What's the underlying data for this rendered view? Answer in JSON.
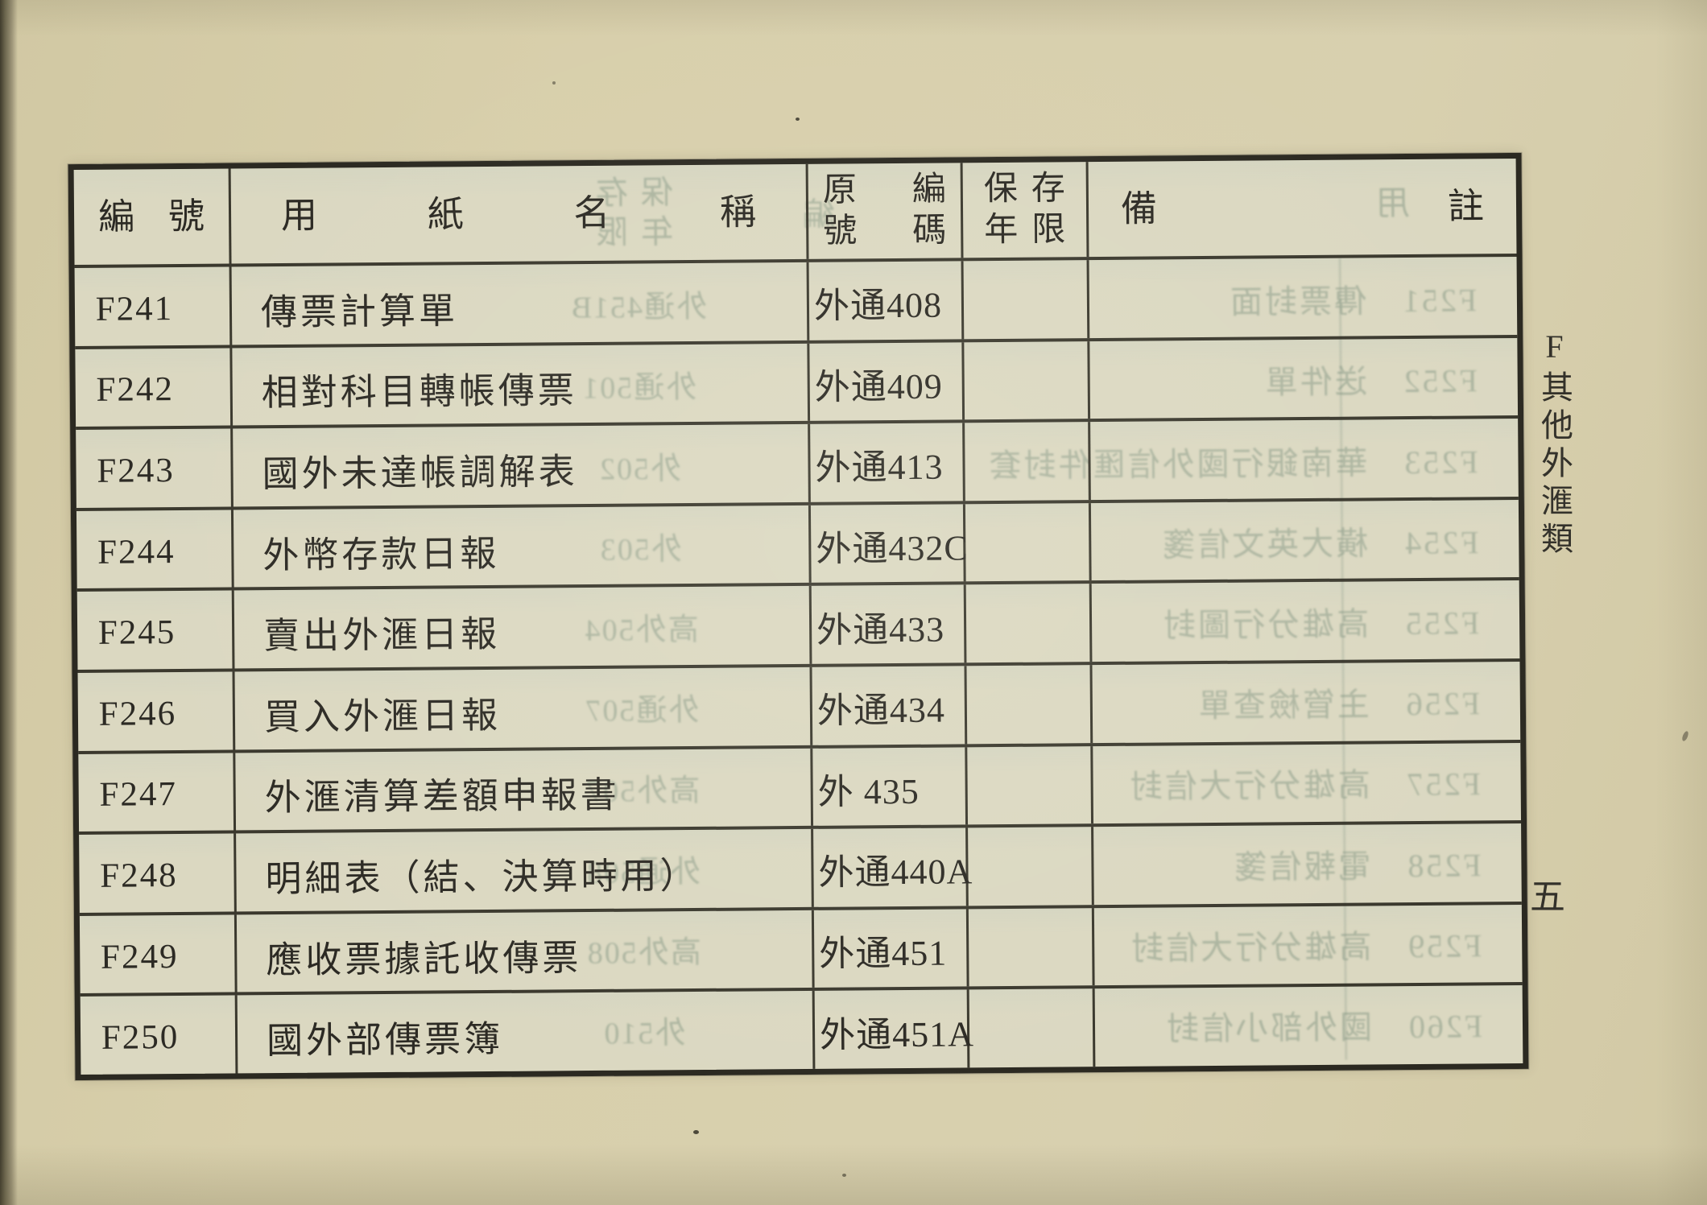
{
  "document": {
    "side_label": "F其他外滙類",
    "page_number": "五"
  },
  "table": {
    "header": {
      "code": "編號",
      "name": "用紙名稱",
      "orig_top": "原編",
      "orig_bottom": "號碼",
      "retention_top": "保存",
      "retention_bottom": "年限",
      "remarks": "備註"
    },
    "rows": [
      {
        "code": "F241",
        "name": "傳票計算單",
        "orig": "外通408",
        "retention": "",
        "remarks": ""
      },
      {
        "code": "F242",
        "name": "相對科目轉帳傳票",
        "orig": "外通409",
        "retention": "",
        "remarks": ""
      },
      {
        "code": "F243",
        "name": "國外未達帳調解表",
        "orig": "外通413",
        "retention": "",
        "remarks": ""
      },
      {
        "code": "F244",
        "name": "外幣存款日報",
        "orig": "外通432C",
        "retention": "",
        "remarks": ""
      },
      {
        "code": "F245",
        "name": "賣出外滙日報",
        "orig": "外通433",
        "retention": "",
        "remarks": ""
      },
      {
        "code": "F246",
        "name": "買入外滙日報",
        "orig": "外通434",
        "retention": "",
        "remarks": ""
      },
      {
        "code": "F247",
        "name": "外滙清算差額申報書",
        "orig": "外 435",
        "retention": "",
        "remarks": ""
      },
      {
        "code": "F248",
        "name": "明細表（結、決算時用）",
        "orig": "外通440A",
        "retention": "",
        "remarks": ""
      },
      {
        "code": "F249",
        "name": "應收票據託收傳票",
        "orig": "外通451",
        "retention": "",
        "remarks": ""
      },
      {
        "code": "F250",
        "name": "國外部傳票簿",
        "orig": "外通451A",
        "retention": "",
        "remarks": ""
      }
    ]
  },
  "bleedthrough": {
    "header": {
      "retention": "保存年限",
      "code": "編",
      "name": "用"
    },
    "rows": [
      {
        "entry": "F251　傳票封面",
        "orig": "外通451B"
      },
      {
        "entry": "F252　送件單",
        "orig": "外通501"
      },
      {
        "entry": "F253　華南銀行國外信匯件封套",
        "orig": "外502"
      },
      {
        "entry": "F254　橫大英文信箋",
        "orig": "外503"
      },
      {
        "entry": "F255　高雄分行圖封",
        "orig": "高外504"
      },
      {
        "entry": "F256　主管檢查單",
        "orig": "外通507"
      },
      {
        "entry": "F257　高雄分行大信封",
        "orig": "高外507"
      },
      {
        "entry": "F258　電報信箋",
        "orig": "外通508"
      },
      {
        "entry": "F259　高雄分行大信封",
        "orig": "高外508"
      },
      {
        "entry": "F260　國外部小信封",
        "orig": "外510"
      }
    ]
  }
}
